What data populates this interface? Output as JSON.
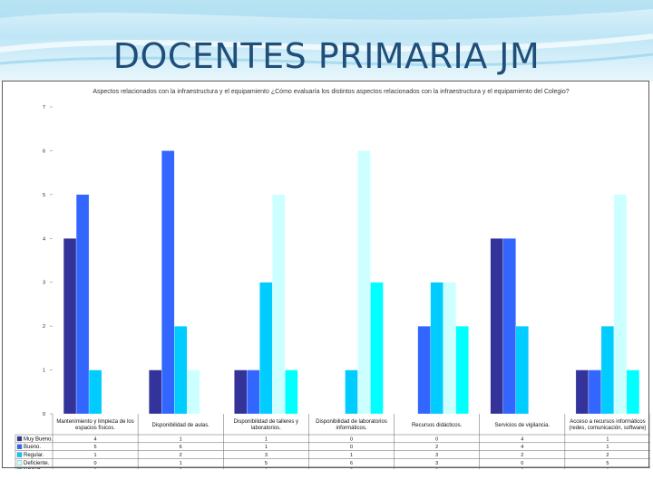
{
  "slide": {
    "title": "DOCENTES PRIMARIA JM"
  },
  "chart_data": {
    "type": "bar",
    "title": "Aspectos relacionados con la infraestructura y el equipamiento ¿Cómo evaluaría los distintos aspectos relacionados con la infraestructura y el equipamiento del Colegio?",
    "xlabel": "",
    "ylabel": "",
    "ylim": [
      0,
      7
    ],
    "yticks": [
      0,
      1,
      2,
      3,
      4,
      5,
      6,
      7
    ],
    "grid": false,
    "legend_position": "left, below chart (data table)",
    "categories": [
      [
        "Mantenimiento y limpieza de los",
        "espacios físicos."
      ],
      [
        "Disponibilidad de aulas."
      ],
      [
        "Disponibilidad de talleres y",
        "laboratorios."
      ],
      [
        "Disponibilidad de laboratorios",
        "informáticos."
      ],
      [
        "Recursos didácticos."
      ],
      [
        "Servicios de vigilancia."
      ],
      [
        "Acceso a recursos informáticos",
        "(redes, comunicación, software)"
      ]
    ],
    "series": [
      {
        "name": "Muy Bueno.",
        "color": "#333399",
        "values": [
          4,
          1,
          1,
          0,
          0,
          4,
          1
        ]
      },
      {
        "name": "Bueno.",
        "color": "#3366ff",
        "values": [
          5,
          6,
          1,
          0,
          2,
          4,
          1
        ]
      },
      {
        "name": "Regular.",
        "color": "#00ccff",
        "values": [
          1,
          2,
          3,
          1,
          3,
          2,
          2
        ]
      },
      {
        "name": "Deficiente.",
        "color": "#ccffff",
        "values": [
          0,
          1,
          5,
          6,
          3,
          0,
          5
        ]
      },
      {
        "name": "NS/NC.",
        "color": "#00ffff",
        "values": [
          0,
          0,
          1,
          3,
          2,
          0,
          1
        ]
      }
    ]
  }
}
